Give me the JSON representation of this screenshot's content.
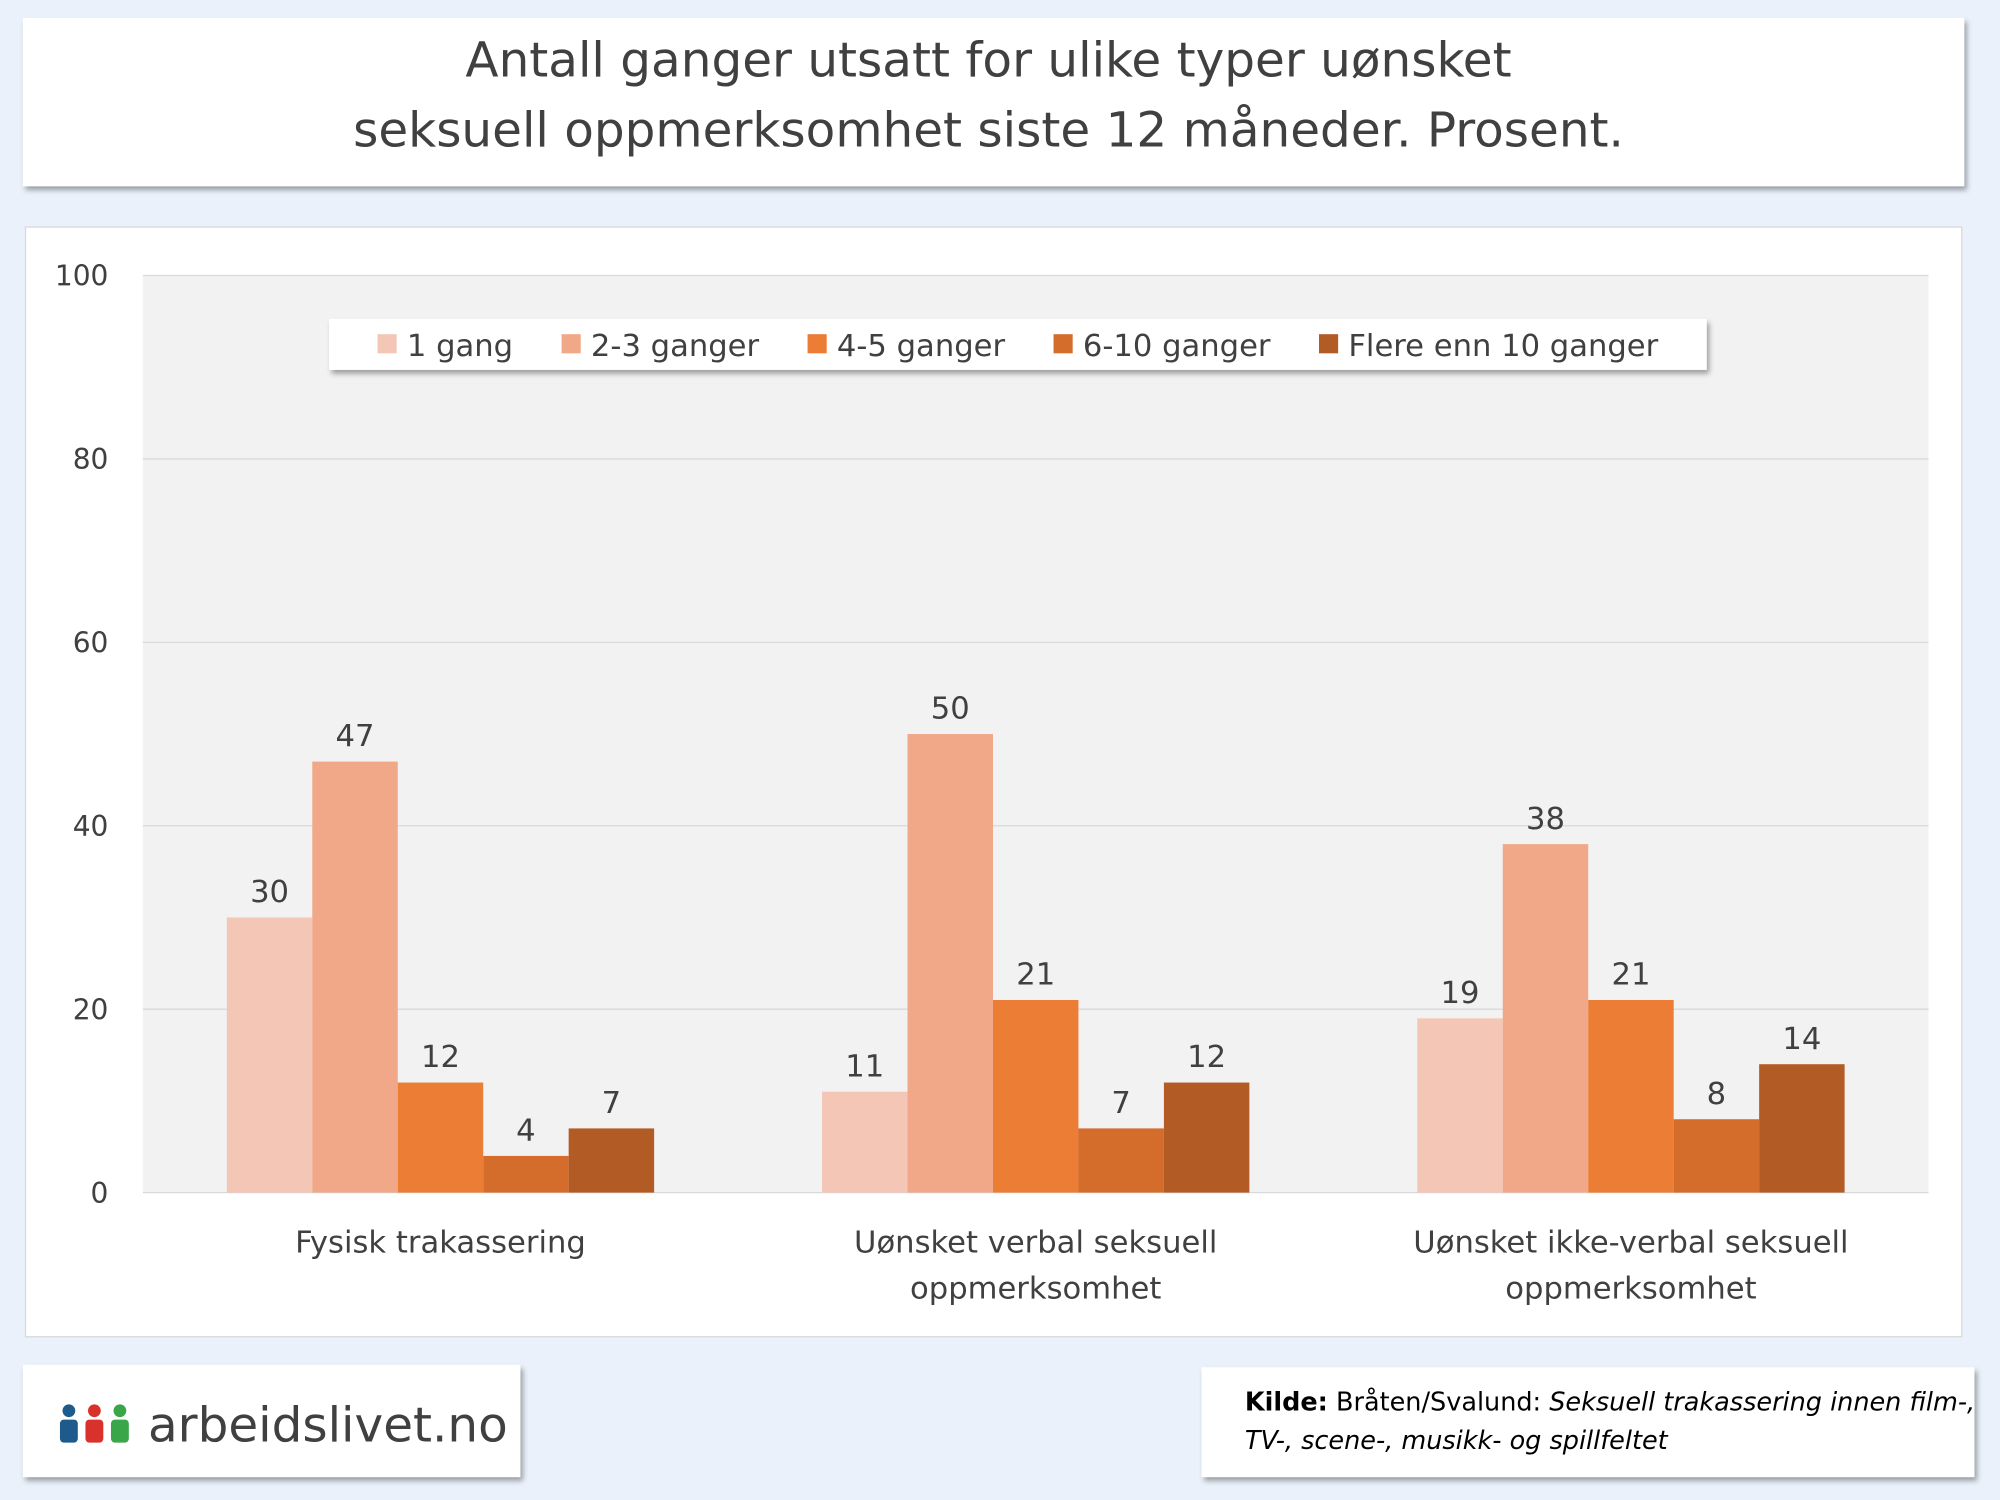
{
  "chart_data": {
    "type": "bar",
    "title": "Antall ganger utsatt for ulike typer uønsket seksuell oppmerksomhet siste 12 måneder. Prosent.",
    "categories": [
      "Fysisk trakassering",
      "Uønsket verbal seksuell oppmerksomhet",
      "Uønsket ikke-verbal seksuell oppmerksomhet"
    ],
    "series": [
      {
        "name": "1 gang",
        "color": "#f4c6b6",
        "values": [
          30,
          11,
          19
        ]
      },
      {
        "name": "2-3 ganger",
        "color": "#f0a888",
        "values": [
          47,
          50,
          38
        ]
      },
      {
        "name": "4-5 ganger",
        "color": "#eb7d35",
        "values": [
          12,
          21,
          21
        ]
      },
      {
        "name": "6-10 ganger",
        "color": "#d46c2b",
        "values": [
          4,
          7,
          8
        ]
      },
      {
        "name": "Flere enn 10 ganger",
        "color": "#b35b24",
        "values": [
          7,
          12,
          14
        ]
      }
    ],
    "ylim": [
      0,
      100
    ],
    "yticks": [
      0,
      20,
      40,
      60,
      80,
      100
    ],
    "grid": true,
    "legend": "top"
  },
  "footer": {
    "logo": "arbeidslivet.no",
    "source": {
      "label": "Kilde:",
      "authors": "Bråten/Svalund:",
      "work": "Seksuell trakassering innen film-, TV-, scene-, musikk- og spillfeltet"
    }
  }
}
